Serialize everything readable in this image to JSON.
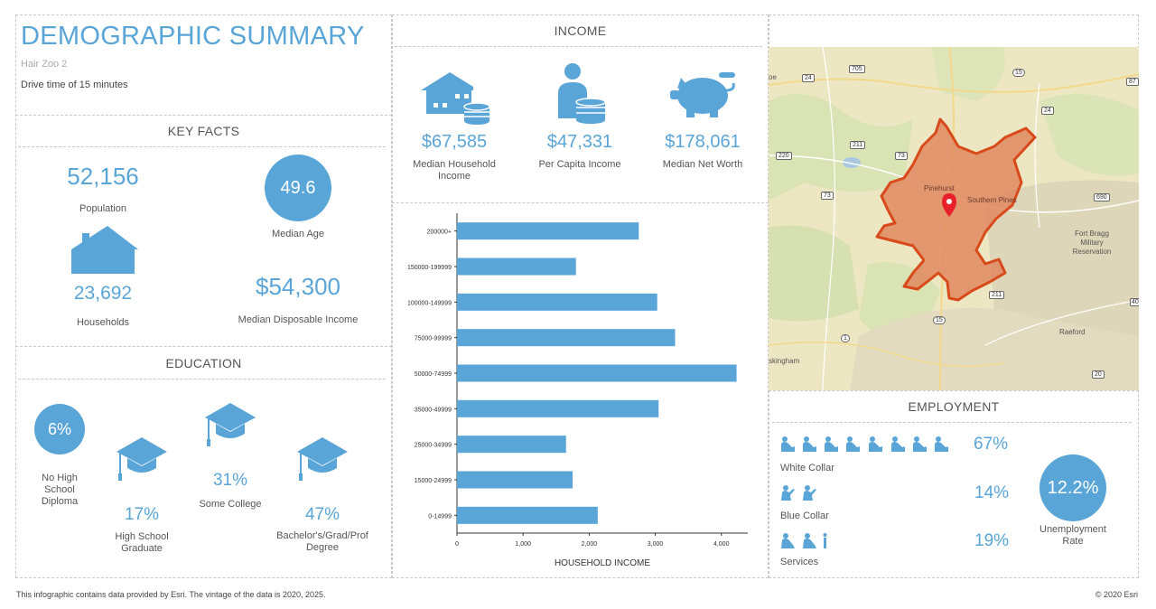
{
  "header": {
    "title": "DEMOGRAPHIC SUMMARY",
    "location": "Hair Zoo 2",
    "drive_time": "Drive time of 15 minutes"
  },
  "key_facts": {
    "title": "KEY FACTS",
    "population_value": "52,156",
    "population_label": "Population",
    "median_age_value": "49.6",
    "median_age_label": "Median Age",
    "households_value": "23,692",
    "households_label": "Households",
    "disposable_income_value": "$54,300",
    "disposable_income_label": "Median Disposable Income"
  },
  "education": {
    "title": "EDUCATION",
    "no_hs_value": "6%",
    "no_hs_label": "No High School Diploma",
    "hs_value": "17%",
    "hs_label": "High School Graduate",
    "some_college_value": "31%",
    "some_college_label": "Some College",
    "bachelors_value": "47%",
    "bachelors_label": "Bachelor's/Grad/Prof Degree"
  },
  "income": {
    "title": "INCOME",
    "household_value": "$67,585",
    "household_label": "Median Household Income",
    "per_capita_value": "$47,331",
    "per_capita_label": "Per Capita Income",
    "net_worth_value": "$178,061",
    "net_worth_label": "Median Net Worth"
  },
  "chart_data": {
    "type": "bar",
    "orientation": "horizontal",
    "categories": [
      "200000+",
      "150000-199999",
      "100000-149999",
      "75000-99999",
      "50000-74999",
      "35000-49999",
      "25000-34999",
      "15000-24999",
      "0-14999"
    ],
    "values": [
      2750,
      1800,
      3030,
      3300,
      4230,
      3050,
      1650,
      1750,
      2130
    ],
    "xlabel": "HOUSEHOLD INCOME",
    "ylabel": "",
    "xlim": [
      0,
      4400
    ],
    "xticks": [
      "0",
      "1,000",
      "2,000",
      "3,000",
      "4,000"
    ],
    "tick_values": [
      0,
      1000,
      2000,
      3000,
      4000
    ],
    "bar_color": "#5aa5d8",
    "grid": false
  },
  "map": {
    "labels": {
      "pinehurst": "Pinehurst",
      "southern_pines": "Southern Pines",
      "fort_bragg": "Fort Bragg Military Reservation",
      "raeford": "Raeford",
      "skingham": "skingham",
      "oe": "oe"
    },
    "shields": [
      "705",
      "24",
      "15",
      "87",
      "24",
      "211",
      "73",
      "220",
      "73",
      "690",
      "211",
      "15",
      "1",
      "20",
      "40"
    ]
  },
  "employment": {
    "title": "EMPLOYMENT",
    "white_collar_value": "67%",
    "white_collar_label": "White Collar",
    "blue_collar_value": "14%",
    "blue_collar_label": "Blue Collar",
    "services_value": "19%",
    "services_label": "Services",
    "unemployment_value": "12.2%",
    "unemployment_label": "Unemployment Rate"
  },
  "footer": {
    "note": "This infographic contains data provided by Esri. The vintage of the data is 2020, 2025.",
    "copyright": "© 2020 Esri"
  },
  "colors": {
    "accent": "#5aa5d8",
    "area_fill": "#e0885f",
    "area_stroke": "#d94a1a"
  }
}
